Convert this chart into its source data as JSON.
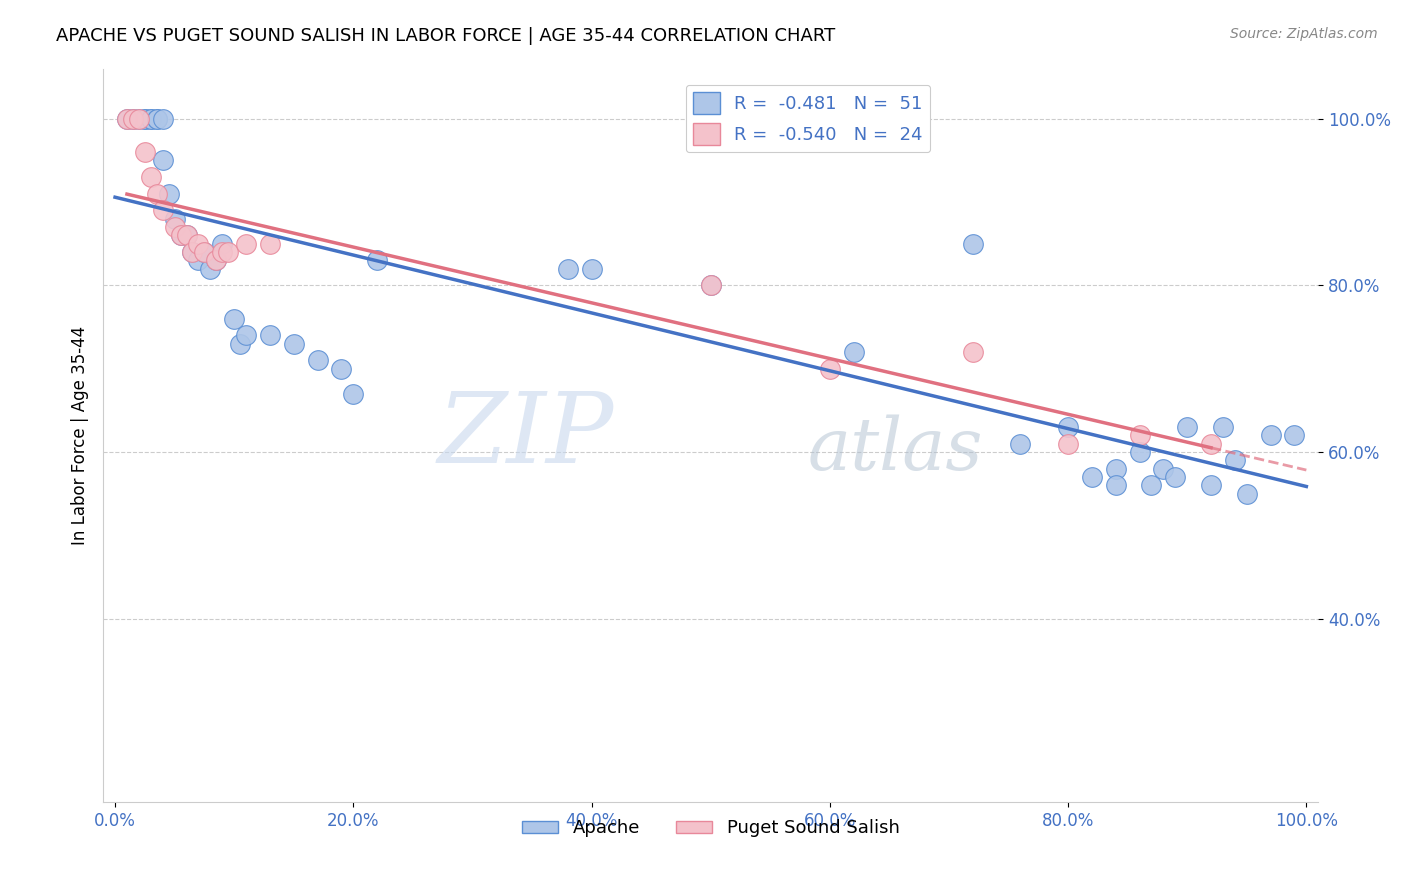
{
  "title": "APACHE VS PUGET SOUND SALISH IN LABOR FORCE | AGE 35-44 CORRELATION CHART",
  "source": "Source: ZipAtlas.com",
  "ylabel": "In Labor Force | Age 35-44",
  "xlim": [
    -0.01,
    1.01
  ],
  "ylim": [
    0.18,
    1.06
  ],
  "apache_R": "-0.481",
  "apache_N": "51",
  "puget_R": "-0.540",
  "puget_N": "24",
  "apache_color": "#aec6e8",
  "apache_edge_color": "#5b8fd4",
  "apache_line_color": "#4472c4",
  "puget_color": "#f4c2cb",
  "puget_edge_color": "#e8889a",
  "puget_line_color": "#e07080",
  "watermark_zip": "ZIP",
  "watermark_atlas": "atlas",
  "apache_scatter_x": [
    0.01,
    0.015,
    0.02,
    0.025,
    0.025,
    0.03,
    0.03,
    0.035,
    0.035,
    0.04,
    0.04,
    0.045,
    0.05,
    0.055,
    0.06,
    0.065,
    0.07,
    0.075,
    0.08,
    0.085,
    0.09,
    0.1,
    0.105,
    0.11,
    0.13,
    0.15,
    0.17,
    0.19,
    0.2,
    0.22,
    0.38,
    0.4,
    0.5,
    0.62,
    0.72,
    0.76,
    0.8,
    0.82,
    0.84,
    0.84,
    0.86,
    0.87,
    0.88,
    0.89,
    0.9,
    0.92,
    0.93,
    0.94,
    0.95,
    0.97,
    0.99
  ],
  "apache_scatter_y": [
    1.0,
    1.0,
    1.0,
    1.0,
    1.0,
    1.0,
    1.0,
    1.0,
    1.0,
    1.0,
    0.95,
    0.91,
    0.88,
    0.86,
    0.86,
    0.84,
    0.83,
    0.84,
    0.82,
    0.83,
    0.85,
    0.76,
    0.73,
    0.74,
    0.74,
    0.73,
    0.71,
    0.7,
    0.67,
    0.83,
    0.82,
    0.82,
    0.8,
    0.72,
    0.85,
    0.61,
    0.63,
    0.57,
    0.58,
    0.56,
    0.6,
    0.56,
    0.58,
    0.57,
    0.63,
    0.56,
    0.63,
    0.59,
    0.55,
    0.62,
    0.62
  ],
  "puget_scatter_x": [
    0.01,
    0.015,
    0.02,
    0.025,
    0.03,
    0.035,
    0.04,
    0.05,
    0.055,
    0.06,
    0.065,
    0.07,
    0.075,
    0.085,
    0.09,
    0.095,
    0.11,
    0.13,
    0.5,
    0.6,
    0.72,
    0.8,
    0.86,
    0.92
  ],
  "puget_scatter_y": [
    1.0,
    1.0,
    1.0,
    0.96,
    0.93,
    0.91,
    0.89,
    0.87,
    0.86,
    0.86,
    0.84,
    0.85,
    0.84,
    0.83,
    0.84,
    0.84,
    0.85,
    0.85,
    0.8,
    0.7,
    0.72,
    0.61,
    0.62,
    0.61
  ],
  "ytick_positions": [
    0.4,
    0.6,
    0.8,
    1.0
  ],
  "ytick_labels": [
    "40.0%",
    "60.0%",
    "80.0%",
    "100.0%"
  ],
  "xtick_positions": [
    0.0,
    0.2,
    0.4,
    0.6,
    0.8,
    1.0
  ],
  "xtick_labels": [
    "0.0%",
    "20.0%",
    "40.0%",
    "60.0%",
    "80.0%",
    "100.0%"
  ],
  "tick_color": "#4472c4"
}
